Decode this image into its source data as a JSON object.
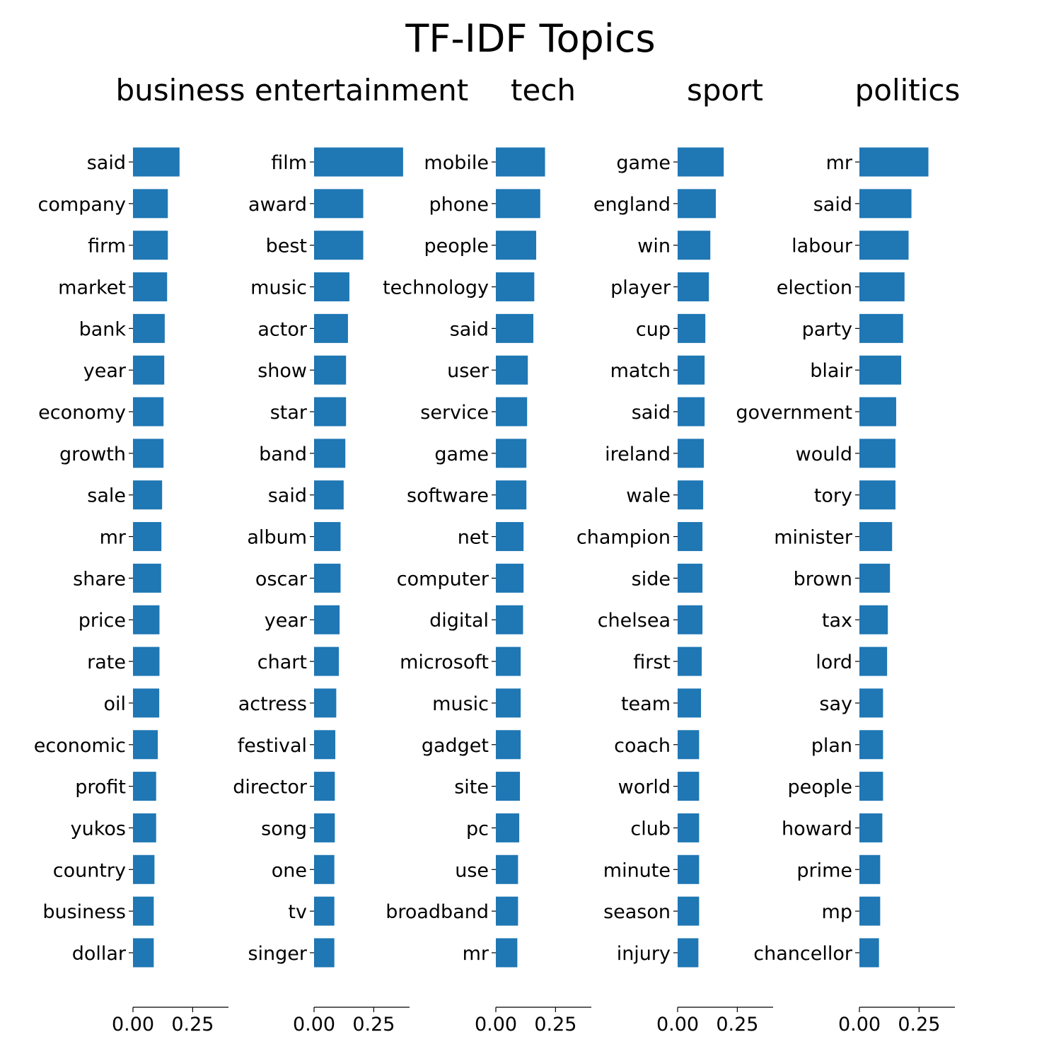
{
  "chart_data": {
    "type": "bar",
    "title": "TF-IDF Topics",
    "bar_color": "#1f77b4",
    "xlim": [
      0,
      0.4
    ],
    "xticks": [
      0,
      0.25
    ],
    "xtick_labels": [
      "0.00",
      "0.25"
    ],
    "panels": [
      {
        "title": "business",
        "categories": [
          "said",
          "company",
          "firm",
          "market",
          "bank",
          "year",
          "economy",
          "growth",
          "sale",
          "mr",
          "share",
          "price",
          "rate",
          "oil",
          "economic",
          "profit",
          "yukos",
          "country",
          "business",
          "dollar"
        ],
        "values": [
          0.195,
          0.146,
          0.146,
          0.143,
          0.133,
          0.131,
          0.128,
          0.128,
          0.122,
          0.119,
          0.118,
          0.111,
          0.111,
          0.11,
          0.104,
          0.097,
          0.097,
          0.09,
          0.087,
          0.087
        ]
      },
      {
        "title": "entertainment",
        "categories": [
          "film",
          "award",
          "best",
          "music",
          "actor",
          "show",
          "star",
          "band",
          "said",
          "album",
          "oscar",
          "year",
          "chart",
          "actress",
          "festival",
          "director",
          "song",
          "one",
          "tv",
          "singer"
        ],
        "values": [
          0.373,
          0.206,
          0.206,
          0.148,
          0.142,
          0.134,
          0.134,
          0.131,
          0.124,
          0.111,
          0.111,
          0.107,
          0.104,
          0.093,
          0.089,
          0.087,
          0.087,
          0.085,
          0.085,
          0.085
        ]
      },
      {
        "title": "tech",
        "categories": [
          "mobile",
          "phone",
          "people",
          "technology",
          "said",
          "user",
          "service",
          "game",
          "software",
          "net",
          "computer",
          "digital",
          "microsoft",
          "music",
          "gadget",
          "site",
          "pc",
          "use",
          "broadband",
          "mr"
        ],
        "values": [
          0.206,
          0.186,
          0.169,
          0.161,
          0.157,
          0.134,
          0.131,
          0.128,
          0.128,
          0.116,
          0.116,
          0.114,
          0.104,
          0.104,
          0.104,
          0.101,
          0.098,
          0.093,
          0.093,
          0.09
        ]
      },
      {
        "title": "sport",
        "categories": [
          "game",
          "england",
          "win",
          "player",
          "cup",
          "match",
          "said",
          "ireland",
          "wale",
          "champion",
          "side",
          "chelsea",
          "first",
          "team",
          "coach",
          "world",
          "club",
          "minute",
          "season",
          "injury"
        ],
        "values": [
          0.193,
          0.16,
          0.137,
          0.131,
          0.116,
          0.113,
          0.113,
          0.11,
          0.107,
          0.104,
          0.104,
          0.104,
          0.101,
          0.098,
          0.09,
          0.09,
          0.09,
          0.09,
          0.09,
          0.087
        ]
      },
      {
        "title": "politics",
        "categories": [
          "mr",
          "said",
          "labour",
          "election",
          "party",
          "blair",
          "government",
          "would",
          "tory",
          "minister",
          "brown",
          "tax",
          "lord",
          "say",
          "plan",
          "people",
          "howard",
          "prime",
          "mp",
          "chancellor"
        ],
        "values": [
          0.289,
          0.218,
          0.206,
          0.189,
          0.183,
          0.175,
          0.154,
          0.151,
          0.151,
          0.137,
          0.128,
          0.119,
          0.116,
          0.099,
          0.099,
          0.099,
          0.096,
          0.087,
          0.087,
          0.082
        ]
      }
    ]
  }
}
